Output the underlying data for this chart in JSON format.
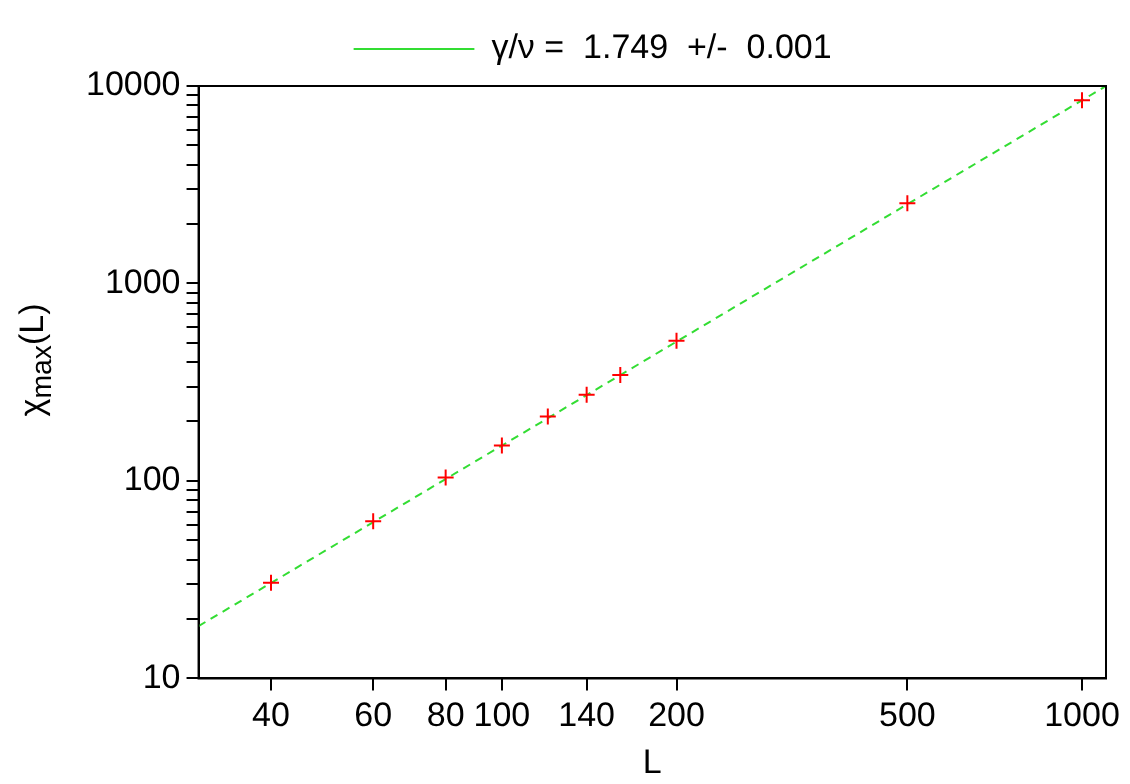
{
  "chart_data": {
    "type": "scatter",
    "xlabel": "L",
    "ylabel": "χ$_{max}$(L)",
    "log": "xy",
    "grid": false,
    "legend": "top",
    "marker": "cross",
    "xlim": [
      30,
      1100
    ],
    "xticks": [
      40,
      60,
      80,
      100,
      140,
      200,
      500,
      1000
    ],
    "ylim": [
      10,
      10000
    ],
    "yticks": [
      10,
      {
        "value": 20,
        "label": null
      },
      {
        "value": 30,
        "label": null
      },
      {
        "value": 40,
        "label": null
      },
      {
        "value": 50,
        "label": null
      },
      {
        "value": 60,
        "label": null
      },
      {
        "value": 70,
        "label": null
      },
      {
        "value": 80,
        "label": null
      },
      {
        "value": 90,
        "label": null
      },
      100,
      {
        "value": 200,
        "label": null
      },
      {
        "value": 300,
        "label": null
      },
      {
        "value": 400,
        "label": null
      },
      {
        "value": 500,
        "label": null
      },
      {
        "value": 600,
        "label": null
      },
      {
        "value": 700,
        "label": null
      },
      {
        "value": 800,
        "label": null
      },
      {
        "value": 900,
        "label": null
      },
      1000,
      {
        "value": 2000,
        "label": null
      },
      {
        "value": 3000,
        "label": null
      },
      {
        "value": 4000,
        "label": null
      },
      {
        "value": 5000,
        "label": null
      },
      {
        "value": 6000,
        "label": null
      },
      {
        "value": 7000,
        "label": null
      },
      {
        "value": 8000,
        "label": null
      },
      {
        "value": 9000,
        "label": null
      },
      10000
    ],
    "series": [
      {
        "type": "scatter",
        "color": "#ff0000",
        "x": [
          40,
          60,
          80,
          100,
          120,
          140,
          160,
          200,
          500,
          1000
        ],
        "values": [
          30.5,
          62.5,
          104,
          151,
          212,
          273,
          344,
          513,
          2550,
          8470
        ]
      },
      {
        "type": "line",
        "name": "γ/ν =  1.749  +/-  0.001",
        "color": "#33dd33",
        "line_style": "dashed",
        "marker": "none",
        "x": [
          30,
          1100
        ],
        "values": [
          18.4,
          10000
        ]
      }
    ]
  }
}
